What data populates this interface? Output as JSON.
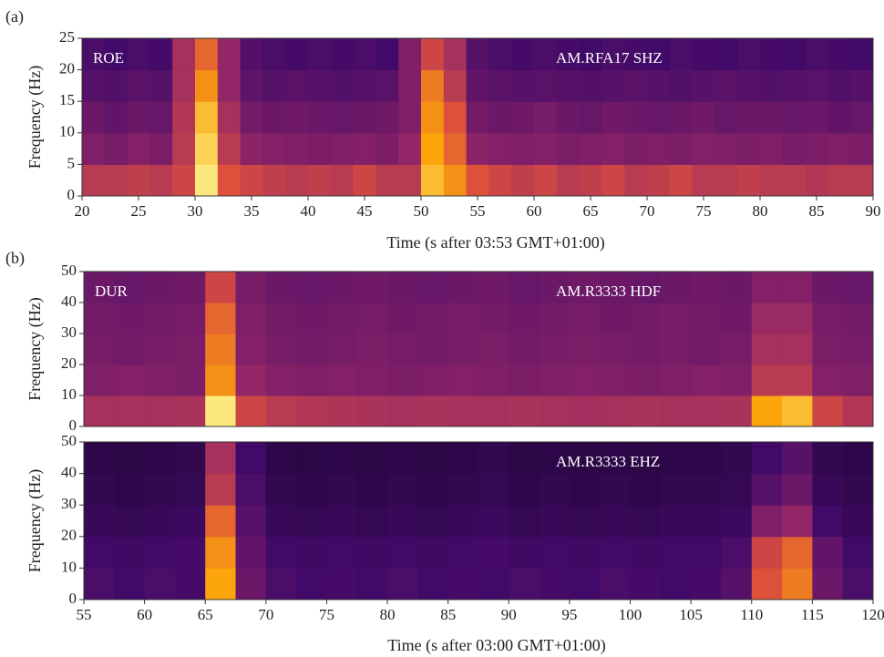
{
  "chart_data": [
    {
      "type": "heatmap",
      "panel_label": "(a)",
      "station": "ROE",
      "channel": "AM.RFA17 SHZ",
      "xlabel": "Time (s after 03:53 GMT+01:00)",
      "ylabel": "Frequency (Hz)",
      "xlim": [
        20,
        90
      ],
      "ylim": [
        0,
        25
      ],
      "xticks": [
        20,
        25,
        30,
        35,
        40,
        45,
        50,
        55,
        60,
        65,
        70,
        75,
        80,
        85,
        90
      ],
      "yticks": [
        0,
        5,
        10,
        15,
        20,
        25
      ],
      "x_edges": [
        20,
        22,
        24,
        26,
        28,
        30,
        32,
        34,
        36,
        38,
        40,
        42,
        44,
        46,
        48,
        50,
        52,
        54,
        56,
        58,
        60,
        62,
        64,
        66,
        68,
        70,
        72,
        74,
        76,
        78,
        80,
        82,
        84,
        86,
        88,
        90
      ],
      "y_edges": [
        0,
        5,
        10,
        15,
        20,
        25
      ],
      "zlim": [
        0,
        1
      ],
      "colormap": [
        "#000004",
        "#420a68",
        "#932667",
        "#dd513a",
        "#fca50a",
        "#fcffa4"
      ],
      "values": [
        [
          0.5,
          0.5,
          0.52,
          0.5,
          0.55,
          0.95,
          0.6,
          0.55,
          0.52,
          0.5,
          0.52,
          0.5,
          0.55,
          0.5,
          0.5,
          0.85,
          0.75,
          0.6,
          0.55,
          0.52,
          0.55,
          0.5,
          0.52,
          0.55,
          0.5,
          0.52,
          0.55,
          0.5,
          0.5,
          0.52,
          0.5,
          0.5,
          0.48,
          0.5,
          0.5
        ],
        [
          0.35,
          0.33,
          0.36,
          0.34,
          0.5,
          0.9,
          0.5,
          0.38,
          0.36,
          0.35,
          0.34,
          0.35,
          0.36,
          0.34,
          0.4,
          0.8,
          0.65,
          0.38,
          0.36,
          0.35,
          0.36,
          0.34,
          0.35,
          0.36,
          0.34,
          0.35,
          0.34,
          0.36,
          0.35,
          0.34,
          0.35,
          0.33,
          0.34,
          0.35,
          0.34
        ],
        [
          0.3,
          0.28,
          0.3,
          0.29,
          0.48,
          0.85,
          0.45,
          0.32,
          0.3,
          0.31,
          0.3,
          0.29,
          0.3,
          0.31,
          0.35,
          0.75,
          0.6,
          0.32,
          0.3,
          0.31,
          0.33,
          0.3,
          0.29,
          0.31,
          0.3,
          0.29,
          0.3,
          0.31,
          0.29,
          0.3,
          0.3,
          0.29,
          0.3,
          0.28,
          0.29
        ],
        [
          0.25,
          0.24,
          0.26,
          0.25,
          0.45,
          0.75,
          0.4,
          0.27,
          0.25,
          0.26,
          0.25,
          0.24,
          0.25,
          0.26,
          0.35,
          0.7,
          0.5,
          0.28,
          0.26,
          0.25,
          0.26,
          0.25,
          0.24,
          0.25,
          0.26,
          0.25,
          0.24,
          0.25,
          0.26,
          0.25,
          0.24,
          0.25,
          0.26,
          0.24,
          0.25
        ],
        [
          0.22,
          0.2,
          0.22,
          0.21,
          0.45,
          0.65,
          0.4,
          0.24,
          0.22,
          0.21,
          0.22,
          0.21,
          0.22,
          0.2,
          0.35,
          0.55,
          0.45,
          0.25,
          0.22,
          0.21,
          0.22,
          0.21,
          0.2,
          0.22,
          0.21,
          0.2,
          0.22,
          0.21,
          0.2,
          0.22,
          0.21,
          0.2,
          0.22,
          0.21,
          0.2
        ]
      ]
    },
    {
      "type": "heatmap",
      "panel_label": "(b)",
      "station": "DUR",
      "channel": "AM.R3333 HDF",
      "ylabel": "Frequency (Hz)",
      "xlim": [
        55,
        120
      ],
      "ylim": [
        0,
        50
      ],
      "yticks": [
        0,
        10,
        20,
        30,
        40,
        50
      ],
      "x_edges": [
        55,
        57.5,
        60,
        62.5,
        65,
        67.5,
        70,
        72.5,
        75,
        77.5,
        80,
        82.5,
        85,
        87.5,
        90,
        92.5,
        95,
        97.5,
        100,
        102.5,
        105,
        107.5,
        110,
        112.5,
        115,
        117.5,
        120
      ],
      "y_edges": [
        0,
        10,
        20,
        30,
        40,
        50
      ],
      "zlim": [
        0,
        1
      ],
      "colormap": [
        "#000004",
        "#420a68",
        "#932667",
        "#dd513a",
        "#fca50a",
        "#fcffa4"
      ],
      "values": [
        [
          0.45,
          0.45,
          0.45,
          0.46,
          0.95,
          0.55,
          0.5,
          0.48,
          0.47,
          0.46,
          0.45,
          0.46,
          0.45,
          0.45,
          0.46,
          0.45,
          0.44,
          0.45,
          0.46,
          0.45,
          0.45,
          0.46,
          0.8,
          0.85,
          0.55,
          0.48
        ],
        [
          0.35,
          0.36,
          0.35,
          0.34,
          0.75,
          0.4,
          0.36,
          0.35,
          0.36,
          0.35,
          0.34,
          0.35,
          0.36,
          0.35,
          0.34,
          0.35,
          0.36,
          0.35,
          0.34,
          0.35,
          0.36,
          0.35,
          0.5,
          0.5,
          0.36,
          0.35
        ],
        [
          0.33,
          0.32,
          0.33,
          0.34,
          0.7,
          0.36,
          0.33,
          0.32,
          0.33,
          0.34,
          0.33,
          0.32,
          0.33,
          0.34,
          0.32,
          0.33,
          0.34,
          0.33,
          0.32,
          0.33,
          0.32,
          0.33,
          0.45,
          0.45,
          0.34,
          0.33
        ],
        [
          0.32,
          0.31,
          0.32,
          0.33,
          0.65,
          0.35,
          0.32,
          0.31,
          0.32,
          0.33,
          0.31,
          0.32,
          0.33,
          0.32,
          0.31,
          0.32,
          0.33,
          0.31,
          0.32,
          0.33,
          0.32,
          0.31,
          0.42,
          0.42,
          0.33,
          0.32
        ],
        [
          0.3,
          0.29,
          0.3,
          0.31,
          0.55,
          0.33,
          0.3,
          0.29,
          0.3,
          0.31,
          0.3,
          0.29,
          0.3,
          0.31,
          0.29,
          0.3,
          0.31,
          0.3,
          0.29,
          0.3,
          0.31,
          0.3,
          0.36,
          0.36,
          0.3,
          0.29
        ]
      ]
    },
    {
      "type": "heatmap",
      "channel": "AM.R3333 EHZ",
      "xlabel": "Time (s after 03:00 GMT+01:00)",
      "ylabel": "Frequency (Hz)",
      "xlim": [
        55,
        120
      ],
      "ylim": [
        0,
        50
      ],
      "xticks": [
        55,
        60,
        65,
        70,
        75,
        80,
        85,
        90,
        95,
        100,
        105,
        110,
        115,
        120
      ],
      "yticks": [
        0,
        10,
        20,
        30,
        40,
        50
      ],
      "x_edges": [
        55,
        57.5,
        60,
        62.5,
        65,
        67.5,
        70,
        72.5,
        75,
        77.5,
        80,
        82.5,
        85,
        87.5,
        90,
        92.5,
        95,
        97.5,
        100,
        102.5,
        105,
        107.5,
        110,
        112.5,
        115,
        117.5,
        120
      ],
      "y_edges": [
        0,
        10,
        20,
        30,
        40,
        50
      ],
      "zlim": [
        0,
        1
      ],
      "colormap": [
        "#000004",
        "#420a68",
        "#932667",
        "#dd513a",
        "#fca50a",
        "#fcffa4"
      ],
      "values": [
        [
          0.22,
          0.2,
          0.22,
          0.21,
          0.8,
          0.3,
          0.22,
          0.2,
          0.21,
          0.2,
          0.22,
          0.2,
          0.21,
          0.2,
          0.22,
          0.21,
          0.2,
          0.22,
          0.21,
          0.2,
          0.21,
          0.25,
          0.6,
          0.7,
          0.3,
          0.22
        ],
        [
          0.2,
          0.19,
          0.2,
          0.21,
          0.75,
          0.28,
          0.2,
          0.19,
          0.2,
          0.19,
          0.2,
          0.19,
          0.2,
          0.21,
          0.19,
          0.2,
          0.19,
          0.2,
          0.19,
          0.2,
          0.2,
          0.22,
          0.55,
          0.65,
          0.28,
          0.2
        ],
        [
          0.17,
          0.16,
          0.17,
          0.18,
          0.65,
          0.25,
          0.17,
          0.16,
          0.17,
          0.16,
          0.17,
          0.16,
          0.17,
          0.18,
          0.16,
          0.17,
          0.16,
          0.17,
          0.16,
          0.17,
          0.17,
          0.18,
          0.35,
          0.4,
          0.2,
          0.17
        ],
        [
          0.15,
          0.14,
          0.15,
          0.16,
          0.5,
          0.22,
          0.15,
          0.14,
          0.15,
          0.14,
          0.15,
          0.14,
          0.15,
          0.16,
          0.14,
          0.15,
          0.14,
          0.15,
          0.14,
          0.15,
          0.15,
          0.16,
          0.25,
          0.3,
          0.17,
          0.15
        ],
        [
          0.14,
          0.13,
          0.14,
          0.15,
          0.45,
          0.2,
          0.14,
          0.13,
          0.14,
          0.13,
          0.14,
          0.13,
          0.14,
          0.15,
          0.13,
          0.14,
          0.13,
          0.14,
          0.13,
          0.14,
          0.14,
          0.15,
          0.2,
          0.25,
          0.15,
          0.14
        ]
      ]
    }
  ]
}
